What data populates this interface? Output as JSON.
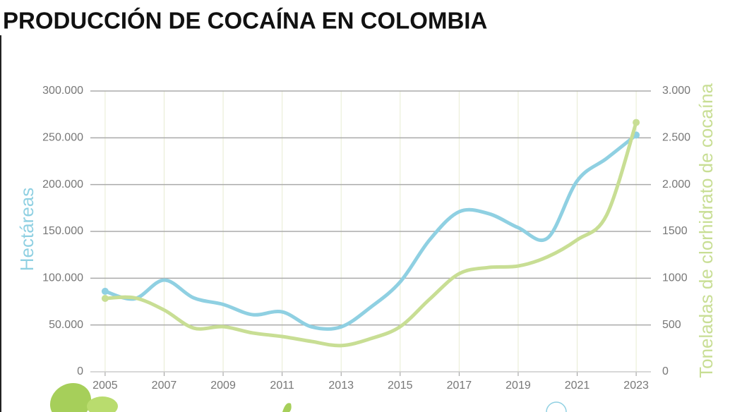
{
  "chart_data": {
    "type": "line",
    "title": "PRODUCCIÓN DE COCAÍNA EN COLOMBIA",
    "y_label": "Hectáreas",
    "y2_label": "Toneladas de clorhidrato de cocaína",
    "x": [
      2005,
      2006,
      2007,
      2008,
      2009,
      2010,
      2011,
      2012,
      2013,
      2014,
      2015,
      2016,
      2017,
      2018,
      2019,
      2020,
      2021,
      2022,
      2023
    ],
    "xlim": [
      2004.5,
      2023.5
    ],
    "xticks": [
      2005,
      2007,
      2009,
      2011,
      2013,
      2015,
      2017,
      2019,
      2021,
      2023
    ],
    "ylim": [
      0,
      300000
    ],
    "yticks": [
      0,
      {
        "value": 50000,
        "label": "50.000"
      },
      {
        "value": 100000,
        "label": "100.000"
      },
      {
        "value": 150000,
        "label": "150.000"
      },
      {
        "value": 200000,
        "label": "200.000"
      },
      {
        "value": 250000,
        "label": "250.000"
      },
      {
        "value": 300000,
        "label": "300.000"
      }
    ],
    "y2lim": [
      0,
      3000
    ],
    "y2ticks": [
      0,
      500,
      1000,
      1500,
      {
        "value": 2000,
        "label": "2.000"
      },
      {
        "value": 2500,
        "label": "2.500"
      },
      {
        "value": 3000,
        "label": "3.000"
      }
    ],
    "grid": true,
    "series": [
      {
        "color": "#8fd0e2",
        "values": [
          86000,
          78000,
          98000,
          79000,
          72000,
          61000,
          64000,
          48000,
          48000,
          69000,
          96000,
          141000,
          171000,
          169000,
          154000,
          143000,
          204000,
          228000,
          253000
        ]
      },
      {
        "color": "#c8de94",
        "axis": "y2",
        "values": [
          784,
          790,
          660,
          467,
          482,
          415,
          377,
          324,
          280,
          354,
          482,
          776,
          1048,
          1115,
          1130,
          1229,
          1410,
          1675,
          2664
        ]
      }
    ]
  }
}
